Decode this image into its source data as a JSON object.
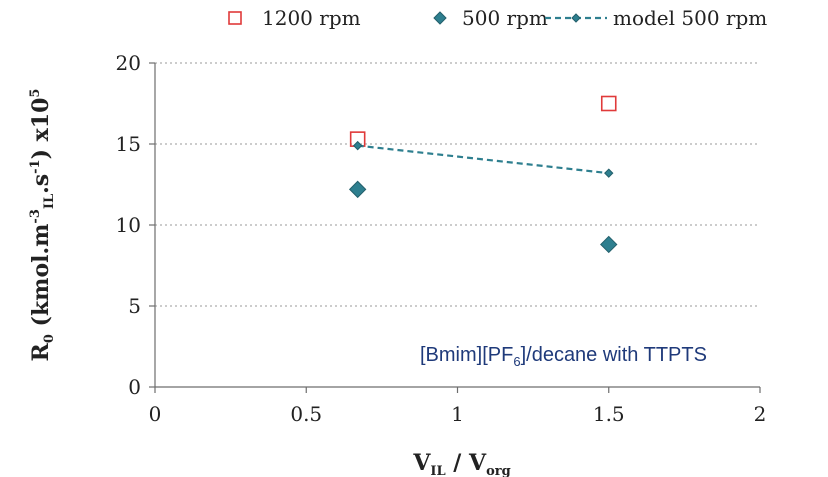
{
  "chart_data": {
    "type": "scatter",
    "xlabel": {
      "main": "V",
      "sub1": "IL",
      "sep": " / V",
      "sub2": "org"
    },
    "ylabel": {
      "main": "R",
      "sub0": "0",
      "mid": " (kmol.m",
      "sup1": "-3",
      "sub1": "IL",
      "mid2": ".s",
      "sup2": "-1",
      "end": ") x10",
      "sup3": "5"
    },
    "xlim": [
      0,
      2
    ],
    "ylim": [
      0,
      20
    ],
    "xticks": [
      0,
      0.5,
      1,
      1.5,
      2
    ],
    "xtick_labels": [
      "0",
      "0.5",
      "1",
      "1.5",
      "2"
    ],
    "yticks": [
      0,
      5,
      10,
      15,
      20
    ],
    "ytick_labels": [
      "0",
      "5",
      "10",
      "15",
      "20"
    ],
    "grid": "horizontal-dashed",
    "legend_position": "top",
    "annotation": {
      "pre": "[Bmim][PF",
      "sub": "6",
      "post": "]/decane with TTPTS"
    },
    "series": [
      {
        "name": "1200 rpm",
        "marker": "open-square",
        "color": "#e03a3a",
        "x": [
          0.67,
          1.5
        ],
        "y": [
          15.3,
          17.5
        ]
      },
      {
        "name": "500 rpm",
        "marker": "diamond",
        "color": "#2e7f8f",
        "x": [
          0.67,
          1.5
        ],
        "y": [
          12.2,
          8.8
        ]
      },
      {
        "name": "model 500 rpm",
        "marker": "small-diamond-dashed-line",
        "color": "#2e7f8f",
        "x": [
          0.67,
          1.5
        ],
        "y": [
          14.9,
          13.2
        ]
      }
    ]
  }
}
